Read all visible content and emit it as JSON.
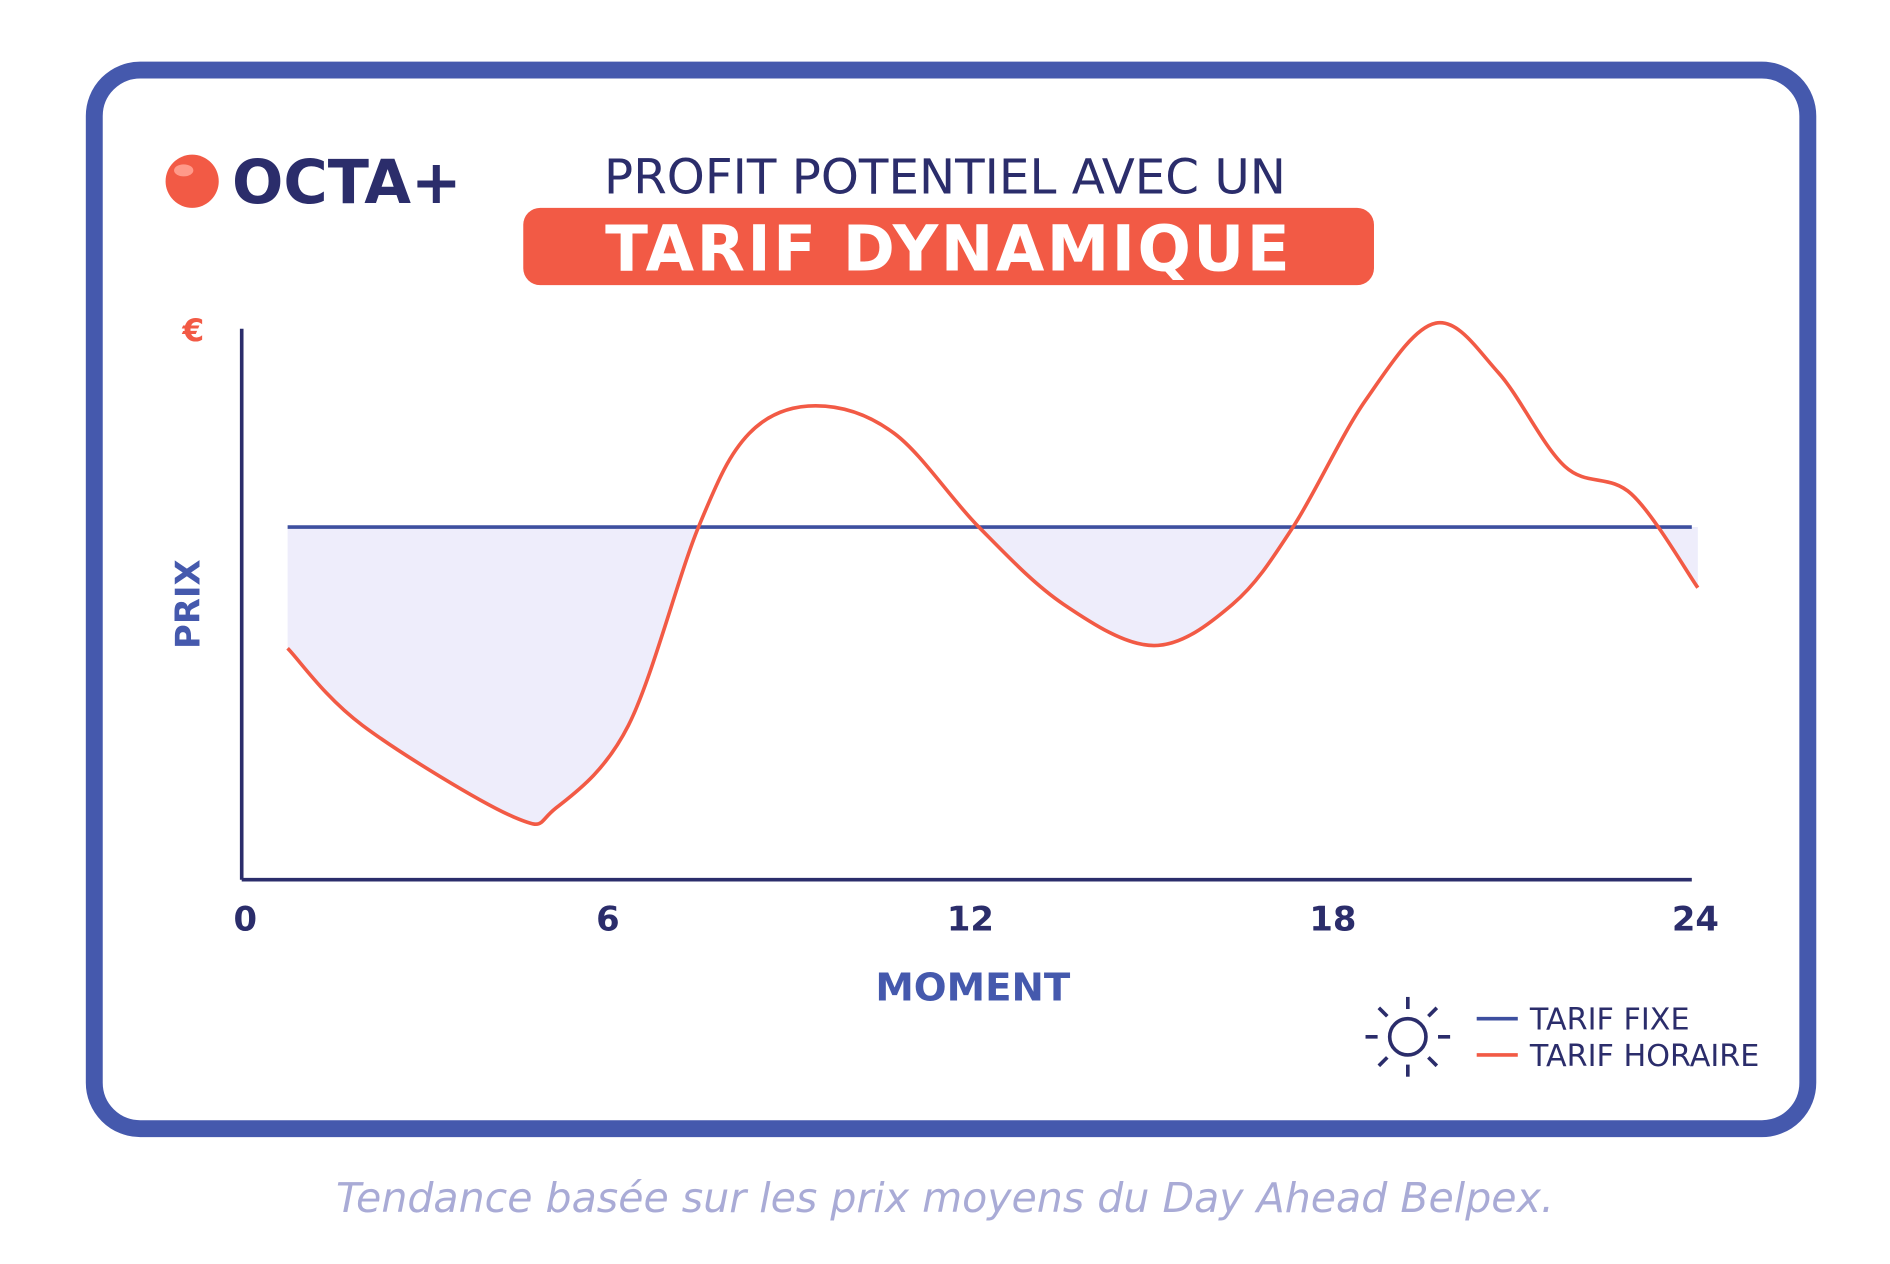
{
  "logo": "OCTA+",
  "caption": "Tendance basée sur les prix moyens du Day Ahead Belpex.",
  "chart_data": {
    "type": "line",
    "title": "PROFIT POTENTIEL AVEC UN",
    "subtitle": "TARIF DYNAMIQUE",
    "x_label": "MOMENT",
    "y_label": "PRIX",
    "y_unit": "€",
    "xlim": [
      0,
      24
    ],
    "xticks": [
      0,
      6,
      12,
      18,
      24
    ],
    "ylim": [
      0,
      100
    ],
    "legend": "bottom-right",
    "series": [
      {
        "name": "TARIF FIXE",
        "color": "#3d4f9f",
        "x": [
          0.76,
          24
        ],
        "values": [
          64,
          64
        ]
      },
      {
        "name": "TARIF HORAIRE",
        "color": "#f25a45",
        "x": [
          0.76,
          2,
          4.5,
          5.2,
          6.4,
          7.56,
          8.4,
          9.5,
          10.8,
          12.2,
          13.6,
          15.1,
          16.4,
          17.4,
          18.6,
          19.76,
          20.8,
          21.9,
          23,
          24.1
        ],
        "values": [
          42,
          28,
          11.4,
          13,
          28,
          64,
          81,
          86,
          81,
          64,
          50,
          42.5,
          50,
          64,
          87,
          101,
          92,
          75,
          70,
          53
        ]
      }
    ]
  }
}
